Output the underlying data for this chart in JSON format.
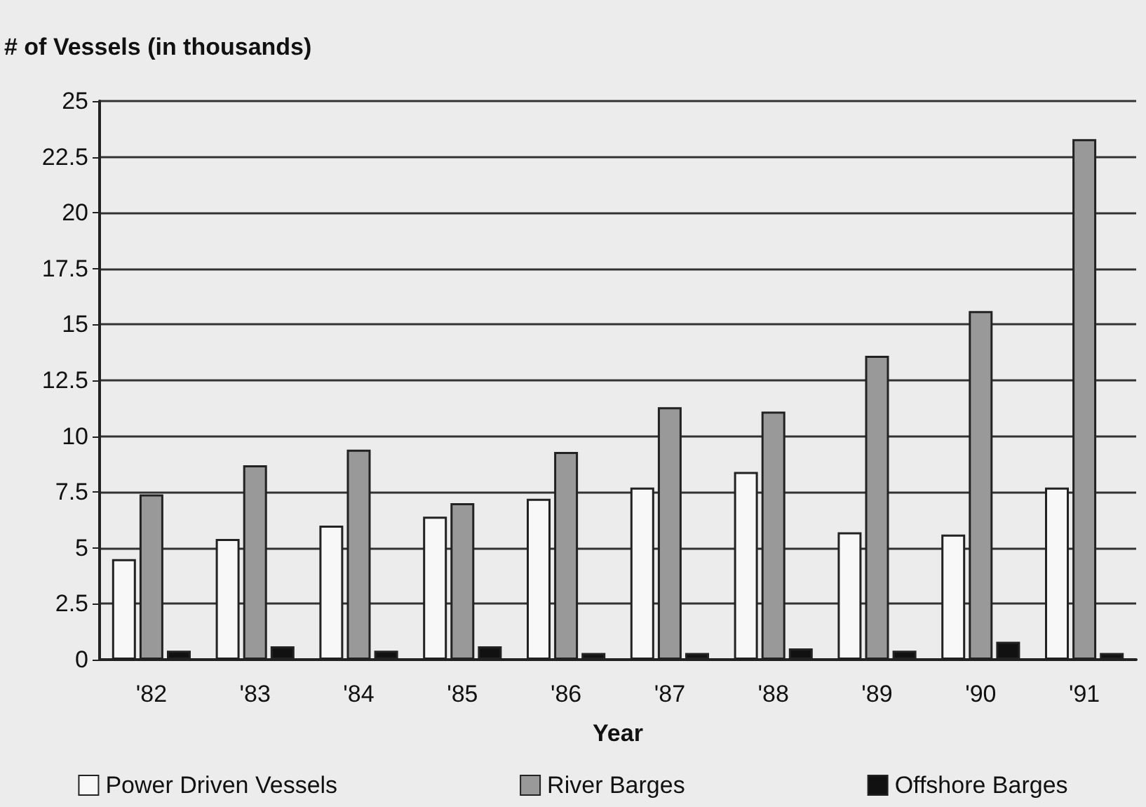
{
  "chart_data": {
    "type": "bar",
    "ylabel": "# of Vessels (in thousands)",
    "xlabel": "Year",
    "categories": [
      "'82",
      "'83",
      "'84",
      "'85",
      "'86",
      "'87",
      "'88",
      "'89",
      "'90",
      "'91"
    ],
    "series": [
      {
        "name": "Power Driven Vessels",
        "color": "#f8f8f8",
        "values": [
          4.5,
          5.4,
          6.0,
          6.4,
          7.2,
          7.7,
          8.4,
          5.7,
          5.6,
          7.7
        ]
      },
      {
        "name": "River Barges",
        "color": "#999999",
        "values": [
          7.4,
          8.7,
          9.4,
          7.0,
          9.3,
          11.3,
          11.1,
          13.6,
          15.6,
          23.3
        ]
      },
      {
        "name": "Offshore Barges",
        "color": "#111111",
        "values": [
          0.4,
          0.6,
          0.4,
          0.6,
          0.3,
          0.3,
          0.5,
          0.4,
          0.8,
          0.3
        ]
      }
    ],
    "ylim": [
      0,
      25
    ],
    "yticks": [
      0,
      2.5,
      5,
      7.5,
      10,
      12.5,
      15,
      17.5,
      20,
      22.5,
      25
    ],
    "grid": "y",
    "legend": "bottom"
  }
}
